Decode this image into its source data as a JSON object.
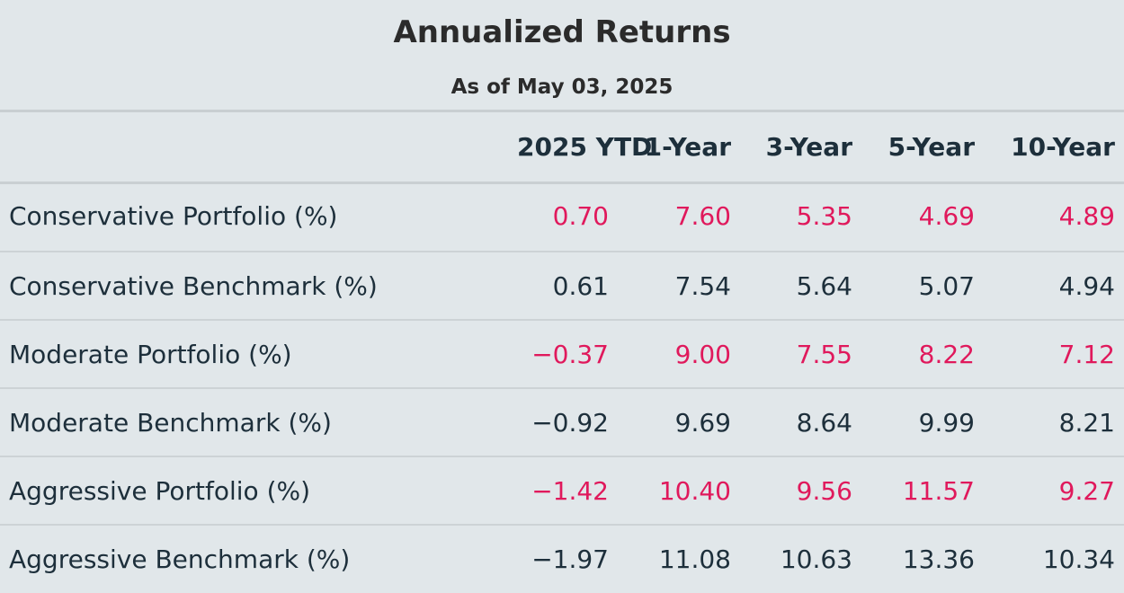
{
  "chart_data": {
    "type": "table",
    "title": "Annualized Returns",
    "subtitle": "As of May 03, 2025",
    "columns": [
      "",
      "2025 YTD",
      "1-Year",
      "3-Year",
      "5-Year",
      "10-Year"
    ],
    "rows": [
      {
        "label": "Conservative Portfolio (%)",
        "kind": "portfolio",
        "values": [
          "0.70",
          "7.60",
          "5.35",
          "4.69",
          "4.89"
        ]
      },
      {
        "label": "Conservative Benchmark (%)",
        "kind": "benchmark",
        "values": [
          "0.61",
          "7.54",
          "5.64",
          "5.07",
          "4.94"
        ]
      },
      {
        "label": "Moderate Portfolio (%)",
        "kind": "portfolio",
        "values": [
          "−0.37",
          "9.00",
          "7.55",
          "8.22",
          "7.12"
        ]
      },
      {
        "label": "Moderate Benchmark (%)",
        "kind": "benchmark",
        "values": [
          "−0.92",
          "9.69",
          "8.64",
          "9.99",
          "8.21"
        ]
      },
      {
        "label": "Aggressive Portfolio (%)",
        "kind": "portfolio",
        "values": [
          "−1.42",
          "10.40",
          "9.56",
          "11.57",
          "9.27"
        ]
      },
      {
        "label": "Aggressive Benchmark (%)",
        "kind": "benchmark",
        "values": [
          "−1.97",
          "11.08",
          "10.63",
          "13.36",
          "10.34"
        ]
      }
    ]
  },
  "colors": {
    "background": "#e1e7ea",
    "portfolio_text": "#e0195c",
    "benchmark_text": "#1d2f3b",
    "rule": "#c9cfd2"
  }
}
